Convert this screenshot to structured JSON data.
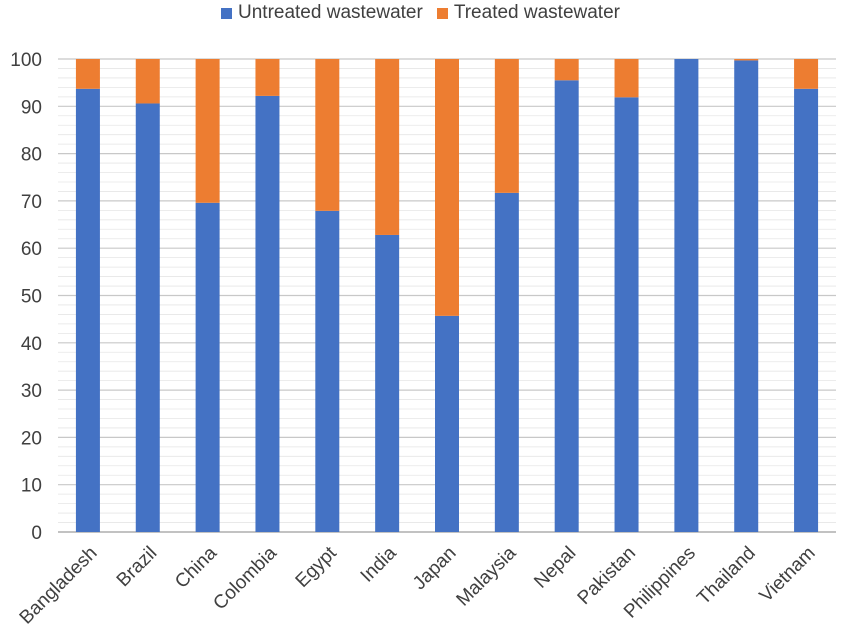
{
  "chart_data": {
    "type": "bar",
    "stacked": true,
    "categories": [
      "Bangladesh",
      "Brazil",
      "China",
      "Colombia",
      "Egypt",
      "India",
      "Japan",
      "Malaysia",
      "Nepal",
      "Pakistan",
      "Philippines",
      "Thailand",
      "Vietnam"
    ],
    "series": [
      {
        "name": "Untreated wastewater",
        "color": "#4472C4",
        "values": [
          93.7,
          90.6,
          69.6,
          92.2,
          67.9,
          62.8,
          45.7,
          71.7,
          95.5,
          91.9,
          100.0,
          99.7,
          93.7
        ]
      },
      {
        "name": "Treated wastewater",
        "color": "#ED7D31",
        "values": [
          6.3,
          9.4,
          30.4,
          7.8,
          32.1,
          37.2,
          54.3,
          28.3,
          4.5,
          8.1,
          0.0,
          0.3,
          6.3
        ]
      }
    ],
    "ylim": [
      0,
      100
    ],
    "yticks": [
      0,
      10,
      20,
      30,
      40,
      50,
      60,
      70,
      80,
      90,
      100
    ],
    "grid": true,
    "legend": "top-center",
    "xlabel": "",
    "ylabel": "",
    "title": ""
  }
}
